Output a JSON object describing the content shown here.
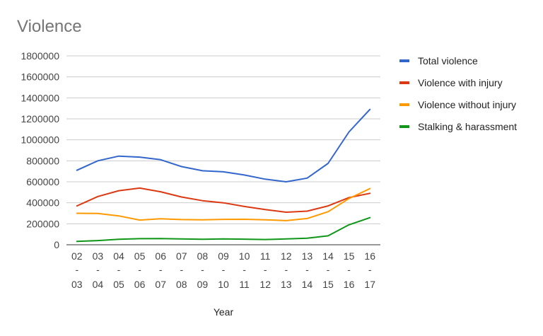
{
  "chart_data": {
    "type": "line",
    "title": "Violence",
    "xlabel": "Year",
    "ylabel": "",
    "ylim": [
      0,
      1800000
    ],
    "yticks": [
      0,
      200000,
      400000,
      600000,
      800000,
      1000000,
      1200000,
      1400000,
      1600000,
      1800000
    ],
    "ytick_labels": [
      "0",
      "200000",
      "400000",
      "600000",
      "800000",
      "1000000",
      "1200000",
      "1400000",
      "1600000",
      "1800000"
    ],
    "categories": [
      {
        "top": "02",
        "bottom": "03"
      },
      {
        "top": "03",
        "bottom": "04"
      },
      {
        "top": "04",
        "bottom": "05"
      },
      {
        "top": "05",
        "bottom": "06"
      },
      {
        "top": "06",
        "bottom": "07"
      },
      {
        "top": "07",
        "bottom": "08"
      },
      {
        "top": "08",
        "bottom": "09"
      },
      {
        "top": "09",
        "bottom": "10"
      },
      {
        "top": "10",
        "bottom": "11"
      },
      {
        "top": "11",
        "bottom": "12"
      },
      {
        "top": "12",
        "bottom": "13"
      },
      {
        "top": "13",
        "bottom": "14"
      },
      {
        "top": "14",
        "bottom": "15"
      },
      {
        "top": "15",
        "bottom": "16"
      },
      {
        "top": "16",
        "bottom": "17"
      }
    ],
    "category_separator": "-",
    "series": [
      {
        "name": "Total violence",
        "color": "#3366cc",
        "values": [
          710000,
          800000,
          845000,
          835000,
          810000,
          745000,
          705000,
          695000,
          665000,
          625000,
          600000,
          635000,
          775000,
          1075000,
          1290000
        ]
      },
      {
        "name": "Violence with injury",
        "color": "#dc3912",
        "values": [
          370000,
          460000,
          515000,
          540000,
          505000,
          455000,
          420000,
          400000,
          365000,
          335000,
          310000,
          320000,
          370000,
          450000,
          490000
        ]
      },
      {
        "name": "Violence without injury",
        "color": "#ff9900",
        "values": [
          300000,
          298000,
          275000,
          235000,
          248000,
          240000,
          237000,
          242000,
          243000,
          238000,
          230000,
          250000,
          315000,
          440000,
          535000
        ]
      },
      {
        "name": "Stalking & harassment",
        "color": "#109618",
        "values": [
          32000,
          40000,
          52000,
          58000,
          59000,
          55000,
          52000,
          55000,
          53000,
          50000,
          55000,
          62000,
          85000,
          190000,
          258000
        ]
      }
    ],
    "grid": true,
    "legend_position": "right"
  }
}
